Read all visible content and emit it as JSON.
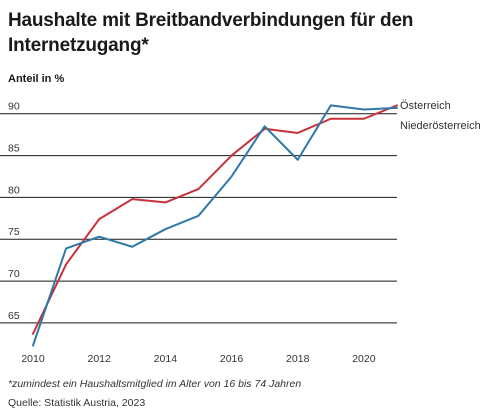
{
  "chart_data": {
    "type": "line",
    "title": "Haushalte mit Breitbandverbindungen für den Internetzugang*",
    "ylabel": "Anteil in %",
    "footnote": "*zumindest ein Haushaltsmitglied im Alter von 16 bis 74 Jahren",
    "source": "Quelle: Statistik Austria, 2023",
    "x": [
      2010,
      2011,
      2012,
      2013,
      2014,
      2015,
      2016,
      2017,
      2018,
      2019,
      2020,
      2021
    ],
    "x_ticks": [
      "2010",
      "2012",
      "2014",
      "2016",
      "2018",
      "2020"
    ],
    "y_ticks": [
      "65",
      "70",
      "75",
      "80",
      "85",
      "90"
    ],
    "ylim": [
      62,
      92
    ],
    "xlim": [
      2010,
      2021
    ],
    "grid": true,
    "legend": "right",
    "series": [
      {
        "name": "Österreich",
        "color": "#c8323c",
        "values": [
          63.7,
          72.0,
          77.4,
          79.8,
          79.4,
          81.0,
          85.0,
          88.2,
          87.7,
          89.4,
          89.4,
          91.0
        ]
      },
      {
        "name": "Niederösterreich",
        "color": "#2f78a8",
        "values": [
          62.3,
          73.9,
          75.3,
          74.1,
          76.2,
          77.8,
          82.5,
          88.5,
          84.5,
          91.0,
          90.5,
          90.7
        ]
      }
    ]
  }
}
